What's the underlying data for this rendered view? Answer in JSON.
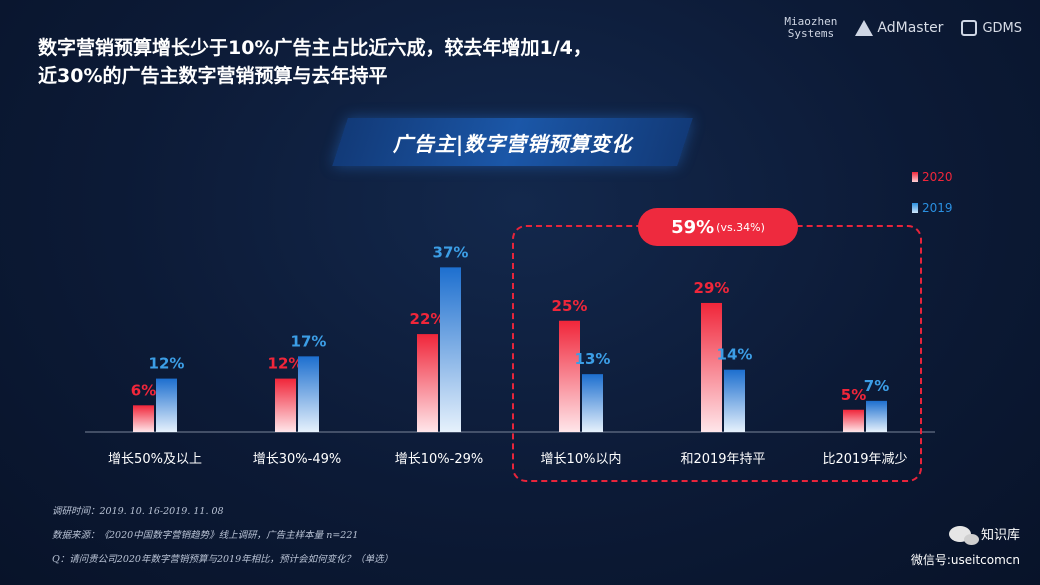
{
  "headline": {
    "line1": "数字营销预算增长少于10%广告主占比近六成，较去年增加1/4，",
    "line2": "近30%的广告主数字营销预算与去年持平"
  },
  "logos": {
    "miaozhen_line1": "Miaozhen",
    "miaozhen_line2": "Systems",
    "admaster": "AdMaster",
    "gdms": "GDMS"
  },
  "banner": {
    "title": "广告主|数字营销预算变化"
  },
  "callout": {
    "value": "59%",
    "note": "(vs.34%)"
  },
  "chart_data": {
    "type": "bar",
    "categories": [
      "增长50%及以上",
      "增长30%-49%",
      "增长10%-29%",
      "增长10%以内",
      "和2019年持平",
      "比2019年减少"
    ],
    "series": [
      {
        "name": "2020",
        "color": "#f0263a",
        "values": [
          6,
          12,
          22,
          25,
          29,
          5
        ],
        "labels": [
          "6%",
          "12%",
          "22%",
          "25%",
          "29%",
          "5%"
        ]
      },
      {
        "name": "2019",
        "color": "#2a8fe0",
        "values": [
          12,
          17,
          37,
          13,
          14,
          7
        ],
        "labels": [
          "12%",
          "17%",
          "37%",
          "13%",
          "14%",
          "7%"
        ]
      }
    ],
    "legend": "top-right",
    "grid": false
  },
  "footer": {
    "survey_time": "调研时间：2019. 10. 16-2019. 11. 08",
    "data_source": "数据来源：《2020中国数字营销趋势》线上调研，广告主样本量 n=221",
    "question": "Q：请问贵公司2020年数字营销预算与2019年相比，预计会如何变化？（单选）"
  },
  "watermark": {
    "name": "知识库",
    "account": "微信号:useitcomcn"
  }
}
